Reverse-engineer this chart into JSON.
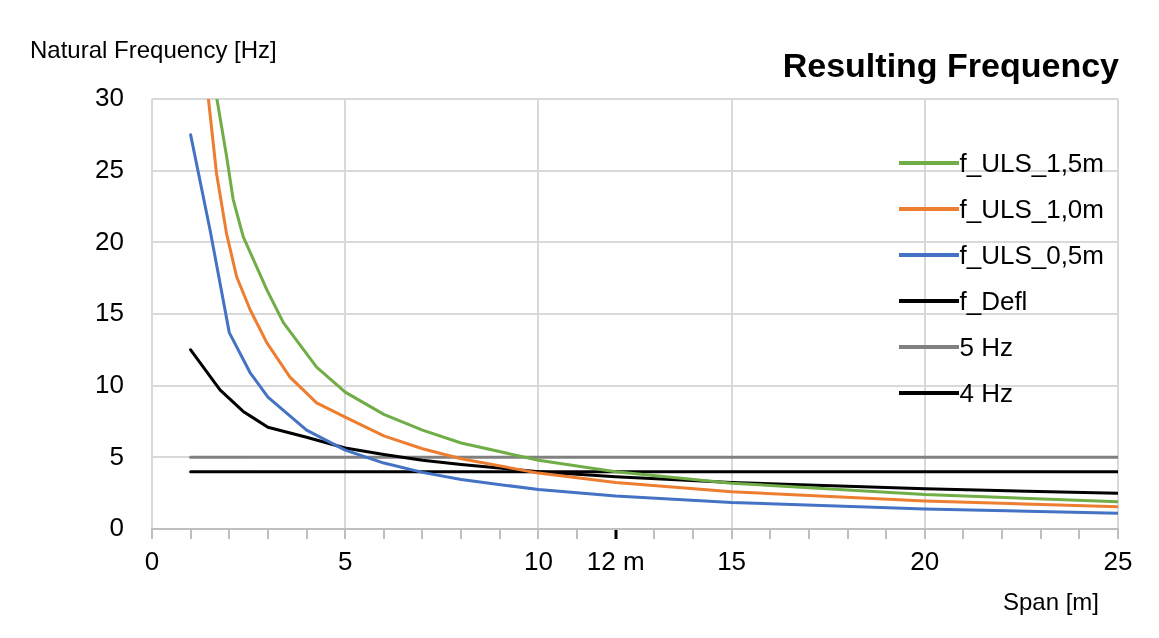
{
  "chart_data": {
    "type": "line",
    "title": "Resulting Frequency",
    "xlabel": "Span [m]",
    "ylabel": "Natural Frequency [Hz]",
    "xlim": [
      0,
      25
    ],
    "xticks": [
      0,
      {
        "value": 1,
        "label": null
      },
      {
        "value": 2,
        "label": null
      },
      {
        "value": 3,
        "label": null
      },
      {
        "value": 4,
        "label": null
      },
      5,
      {
        "value": 6,
        "label": null
      },
      {
        "value": 7,
        "label": null
      },
      {
        "value": 8,
        "label": null
      },
      {
        "value": 9,
        "label": null
      },
      10,
      {
        "value": 11,
        "label": null
      },
      {
        "value": 12,
        "label": "12 m"
      },
      {
        "value": 13,
        "label": null
      },
      {
        "value": 14,
        "label": null
      },
      15,
      {
        "value": 16,
        "label": null
      },
      {
        "value": 17,
        "label": null
      },
      {
        "value": 18,
        "label": null
      },
      {
        "value": 19,
        "label": null
      },
      20,
      {
        "value": 21,
        "label": null
      },
      {
        "value": 22,
        "label": null
      },
      {
        "value": 23,
        "label": null
      },
      {
        "value": 24,
        "label": null
      },
      25
    ],
    "ylim": [
      0,
      30
    ],
    "yticks": [
      0,
      5,
      10,
      15,
      20,
      25,
      30
    ],
    "grid": true,
    "legend": "top right",
    "marker": "none",
    "line_style": "solid",
    "series": [
      {
        "name": "f_ULS_1,5m",
        "color": "#70ad47",
        "x": [
          1.68,
          1.93,
          2.1,
          2.36,
          2.97,
          3.4,
          4.26,
          5,
          6,
          7,
          8,
          10,
          12,
          15,
          20,
          25
        ],
        "values": [
          30,
          26,
          23,
          20.4,
          16.7,
          14.4,
          11.3,
          9.55,
          8,
          6.9,
          6,
          4.8,
          4,
          3.2,
          2.4,
          1.9
        ]
      },
      {
        "name": "f_ULS_1,0m",
        "color": "#ed7d31",
        "x": [
          1.46,
          1.67,
          1.93,
          2.19,
          2.54,
          2.97,
          3.57,
          4.26,
          5,
          6,
          7,
          8,
          10,
          12,
          15,
          20,
          25
        ],
        "values": [
          30,
          24.8,
          20.6,
          17.6,
          15.3,
          13,
          10.6,
          8.8,
          7.8,
          6.5,
          5.6,
          4.9,
          3.9,
          3.25,
          2.6,
          1.95,
          1.55
        ]
      },
      {
        "name": "f_ULS_0,5m",
        "color": "#4472c4",
        "x": [
          1,
          1.5,
          2,
          2.54,
          3,
          4,
          5,
          6,
          7,
          8,
          10,
          12,
          15,
          20,
          25
        ],
        "values": [
          27.5,
          20.9,
          13.7,
          10.9,
          9.2,
          6.9,
          5.5,
          4.6,
          3.95,
          3.45,
          2.75,
          2.3,
          1.85,
          1.4,
          1.1
        ]
      },
      {
        "name": "f_Defl",
        "color": "#000000",
        "x": [
          1,
          1.76,
          2.36,
          3,
          4,
          5,
          6,
          7,
          8,
          10,
          12,
          15,
          20,
          25
        ],
        "values": [
          12.5,
          9.7,
          8.2,
          7.1,
          6.4,
          5.65,
          5.2,
          4.8,
          4.5,
          4,
          3.65,
          3.25,
          2.8,
          2.5
        ]
      },
      {
        "name": "5 Hz",
        "color": "#808080",
        "x": [
          1,
          25
        ],
        "values": [
          5,
          5
        ]
      },
      {
        "name": "4 Hz",
        "color": "#000000",
        "x": [
          1,
          25
        ],
        "values": [
          4,
          4
        ]
      }
    ]
  }
}
